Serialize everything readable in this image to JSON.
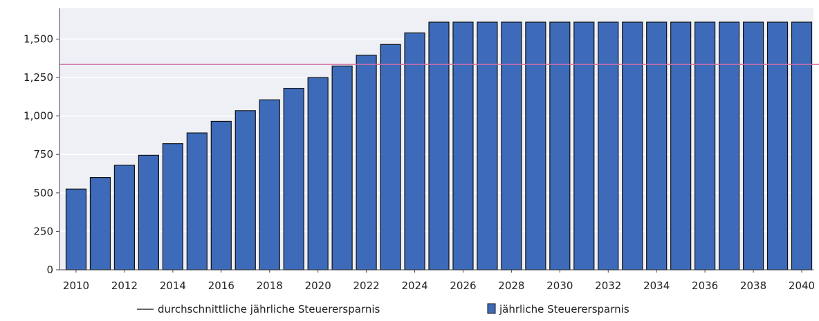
{
  "chart_data": {
    "type": "bar",
    "title": "",
    "xlabel": "",
    "ylabel": "",
    "categories": [
      2010,
      2011,
      2012,
      2013,
      2014,
      2015,
      2016,
      2017,
      2018,
      2019,
      2020,
      2021,
      2022,
      2023,
      2024,
      2025,
      2026,
      2027,
      2028,
      2029,
      2030,
      2031,
      2032,
      2033,
      2034,
      2035,
      2036,
      2037,
      2038,
      2039,
      2040
    ],
    "x_tick_labels": [
      "2010",
      "2012",
      "2014",
      "2016",
      "2018",
      "2020",
      "2022",
      "2024",
      "2026",
      "2028",
      "2030",
      "2032",
      "2034",
      "2036",
      "2038",
      "2040"
    ],
    "series": [
      {
        "name": "jährliche Steuerersparnis",
        "kind": "bar",
        "color": "#3d6bba",
        "values": [
          525,
          600,
          680,
          745,
          820,
          890,
          965,
          1035,
          1105,
          1180,
          1250,
          1325,
          1395,
          1465,
          1540,
          1610,
          1610,
          1610,
          1610,
          1610,
          1610,
          1610,
          1610,
          1610,
          1610,
          1610,
          1610,
          1610,
          1610,
          1610,
          1610
        ]
      },
      {
        "name": "durchschnittliche jährliche Steuerersparnis",
        "kind": "line",
        "color": "#d36fa6",
        "value": 1335
      }
    ],
    "ylim": [
      0,
      1700
    ],
    "y_ticks": [
      0,
      250,
      500,
      750,
      1000,
      1250,
      1500
    ],
    "y_tick_labels": [
      "0",
      "250",
      "500",
      "750",
      "1,000",
      "1,250",
      "1,500"
    ],
    "grid": true,
    "legend_position": "bottom-center",
    "colors": {
      "plot_background": "#eef0f6",
      "gridline": "#ffffff",
      "bar_outline": "#111111",
      "axis": "#444444"
    }
  },
  "legend": {
    "line_label": "durchschnittliche jährliche Steuerersparnis",
    "bar_label": "jährliche Steuerersparnis"
  }
}
